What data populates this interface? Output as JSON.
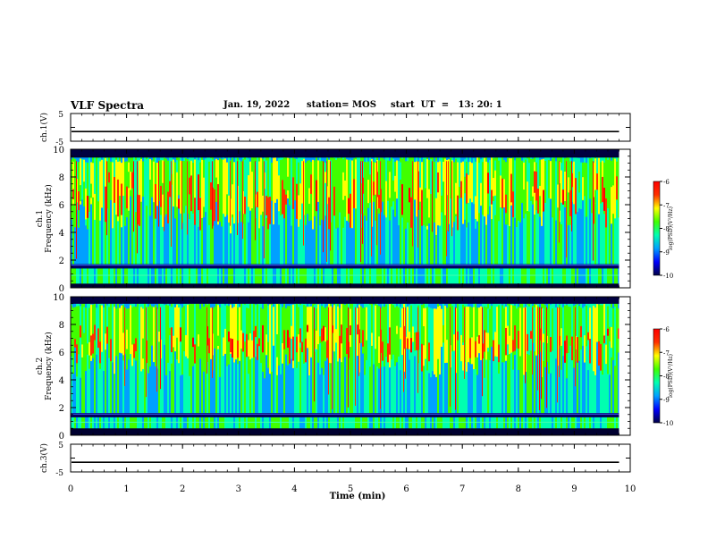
{
  "header": {
    "title": "VLF Spectra",
    "date": "Jan. 19, 2022",
    "station": "station= MOS",
    "start": "start  UT  =   13: 20: 1"
  },
  "chart_data": [
    {
      "type": "line",
      "panel": "ch1-waveform",
      "ylabel": "ch.1(V)",
      "ylim": [
        -5,
        5
      ],
      "yticks": [
        "5",
        "-5"
      ],
      "xlim": [
        0,
        10
      ],
      "series": [
        {
          "values": [
            -1.5
          ]
        }
      ]
    },
    {
      "type": "heatmap",
      "panel": "ch1-spectrogram",
      "ylabel": "ch.1 Frequency (kHz)",
      "ylim": [
        0,
        10
      ],
      "yticks": [
        "0",
        "2",
        "4",
        "6",
        "8",
        "10"
      ],
      "xlim": [
        0,
        9.8
      ],
      "x_unit": "min",
      "band_kHz": [
        0.3,
        9.5
      ],
      "main_band_kHz": [
        1.7,
        9.4
      ],
      "peak_band_kHz": [
        5,
        8.5
      ],
      "colorbar": {
        "label": "log(PSD)(V²/Hz)",
        "range": [
          -10,
          -6
        ],
        "ticks": [
          "-6",
          "-7",
          "-8",
          "-9",
          "-10"
        ]
      }
    },
    {
      "type": "heatmap",
      "panel": "ch2-spectrogram",
      "ylabel": "ch.2 Frequency (kHz)",
      "ylim": [
        0,
        10
      ],
      "yticks": [
        "0",
        "2",
        "4",
        "6",
        "8",
        "10"
      ],
      "xlim": [
        0,
        9.8
      ],
      "x_unit": "min",
      "band_kHz": [
        0.5,
        9.5
      ],
      "main_band_kHz": [
        1.6,
        9.5
      ],
      "peak_band_kHz": [
        5.5,
        8
      ],
      "colorbar": {
        "label": "log(PSD)(V²/Hz)",
        "range": [
          -10,
          -6
        ],
        "ticks": [
          "-6",
          "-7",
          "-8",
          "-9",
          "-10"
        ]
      }
    },
    {
      "type": "line",
      "panel": "ch3-waveform",
      "ylabel": "ch.3(V)",
      "ylim": [
        -5,
        5
      ],
      "yticks": [
        "5",
        "-5"
      ],
      "xlim": [
        0,
        10
      ],
      "series": [
        {
          "values": [
            -1.5
          ]
        }
      ]
    }
  ],
  "xaxis": {
    "label": "Time  (min)",
    "range": [
      0,
      10
    ],
    "ticks": [
      "0",
      "1",
      "2",
      "3",
      "4",
      "5",
      "6",
      "7",
      "8",
      "9",
      "10"
    ]
  },
  "colors": {
    "colormap": [
      "#000046",
      "#0000ff",
      "#00a0ff",
      "#00ffb0",
      "#40ff00",
      "#ffff00",
      "#ff3000",
      "#ff0000"
    ],
    "text": "#000000"
  }
}
